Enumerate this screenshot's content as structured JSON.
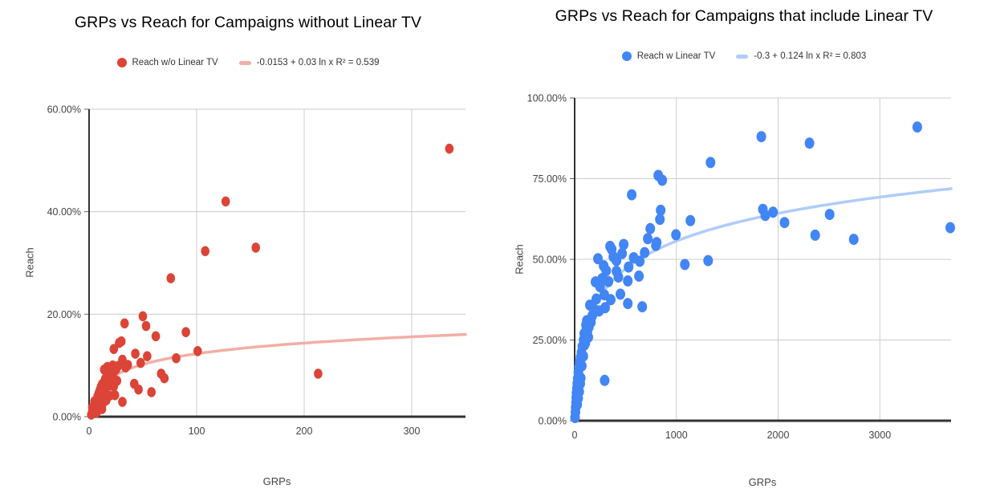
{
  "window": {
    "background": "#ffffff"
  },
  "chart_data": [
    {
      "type": "scatter",
      "title": "GRPs vs Reach for Campaigns without Linear TV",
      "xlabel": "GRPs",
      "ylabel": "Reach",
      "series_name": "Reach w/o Linear TV",
      "trend": {
        "label": "-0.0153 + 0.03 ln x R² = 0.539",
        "a": -0.0153,
        "b": 0.03,
        "r2": 0.539
      },
      "xlim": [
        0,
        350
      ],
      "ylim": [
        0,
        60
      ],
      "grid": true,
      "legend_position": "top",
      "x_ticks": [
        {
          "v": 0,
          "label": "0"
        },
        {
          "v": 100,
          "label": "100"
        },
        {
          "v": 200,
          "label": "200"
        },
        {
          "v": 300,
          "label": "300"
        }
      ],
      "y_ticks": [
        {
          "v": 0,
          "label": "0.00%"
        },
        {
          "v": 20,
          "label": "20.00%"
        },
        {
          "v": 40,
          "label": "40.00%"
        },
        {
          "v": 60,
          "label": "60.00%"
        }
      ],
      "colors": {
        "point": "#DB4437",
        "trend": "#F2AFA6"
      },
      "marker": {
        "rx": 5.3,
        "ry": 6.3
      },
      "units": {
        "x": "GRPs",
        "y": "percent reach"
      },
      "points": [
        [
          335,
          52.3
        ],
        [
          127,
          42
        ],
        [
          108,
          32.3
        ],
        [
          155,
          33
        ],
        [
          76,
          27
        ],
        [
          213,
          8.4
        ],
        [
          101,
          12.8
        ],
        [
          33,
          18.2
        ],
        [
          50,
          19.6
        ],
        [
          53,
          17.7
        ],
        [
          62,
          15.7
        ],
        [
          90,
          16.5
        ],
        [
          30,
          14.7
        ],
        [
          28,
          14.4
        ],
        [
          23,
          13.2
        ],
        [
          43,
          12.3
        ],
        [
          54,
          11.8
        ],
        [
          31,
          11.1
        ],
        [
          81,
          11.4
        ],
        [
          48,
          10.5
        ],
        [
          36,
          10.1
        ],
        [
          17,
          9.7
        ],
        [
          14,
          9.2
        ],
        [
          22,
          10
        ],
        [
          34,
          9.6
        ],
        [
          67,
          8.4
        ],
        [
          70,
          7.5
        ],
        [
          42,
          6.4
        ],
        [
          46,
          5.3
        ],
        [
          58,
          4.8
        ],
        [
          24,
          4.2
        ],
        [
          31,
          2.9
        ],
        [
          20,
          6.1
        ],
        [
          2,
          0.4
        ],
        [
          3,
          0.9
        ],
        [
          3,
          1.8
        ],
        [
          4,
          1.2
        ],
        [
          5,
          2.1
        ],
        [
          5,
          3
        ],
        [
          6,
          1.5
        ],
        [
          6,
          2.6
        ],
        [
          7,
          3.4
        ],
        [
          7,
          0.8
        ],
        [
          8,
          2.2
        ],
        [
          8,
          4
        ],
        [
          9,
          3.1
        ],
        [
          9,
          4.6
        ],
        [
          10,
          2.4
        ],
        [
          10,
          5.2
        ],
        [
          11,
          3.8
        ],
        [
          11,
          5.8
        ],
        [
          12,
          4.4
        ],
        [
          12,
          6.3
        ],
        [
          13,
          5
        ],
        [
          13,
          2.7
        ],
        [
          14,
          6.8
        ],
        [
          15,
          5.5
        ],
        [
          15,
          7.4
        ],
        [
          16,
          6.1
        ],
        [
          17,
          7.9
        ],
        [
          18,
          6.6
        ],
        [
          18,
          8.4
        ],
        [
          19,
          7.1
        ],
        [
          20,
          8.8
        ],
        [
          21,
          7.6
        ],
        [
          22,
          8.1
        ],
        [
          25,
          9.2
        ],
        [
          27,
          9.9
        ],
        [
          12,
          1.5
        ],
        [
          16,
          3.2
        ],
        [
          19,
          4.1
        ],
        [
          23,
          5.9
        ],
        [
          26,
          7
        ]
      ]
    },
    {
      "type": "scatter",
      "title": "GRPs vs Reach for Campaigns that include Linear TV",
      "xlabel": "GRPs",
      "ylabel": "Reach",
      "series_name": "Reach w Linear TV",
      "trend": {
        "label": "-0.3 + 0.124 ln x R² = 0.803",
        "a": -0.3,
        "b": 0.124,
        "r2": 0.803
      },
      "xlim": [
        0,
        3700
      ],
      "ylim": [
        0,
        100
      ],
      "grid": true,
      "legend_position": "top",
      "x_ticks": [
        {
          "v": 0,
          "label": "0"
        },
        {
          "v": 1000,
          "label": "1000"
        },
        {
          "v": 2000,
          "label": "2000"
        },
        {
          "v": 3000,
          "label": "3000"
        }
      ],
      "y_ticks": [
        {
          "v": 0,
          "label": "0.00%"
        },
        {
          "v": 25,
          "label": "25.00%"
        },
        {
          "v": 50,
          "label": "50.00%"
        },
        {
          "v": 75,
          "label": "75.00%"
        },
        {
          "v": 100,
          "label": "100.00%"
        }
      ],
      "colors": {
        "point": "#4285F4",
        "trend": "#B0CCF9"
      },
      "marker": {
        "rx": 6,
        "ry": 7
      },
      "units": {
        "x": "GRPs",
        "y": "percent reach"
      },
      "points": [
        [
          3368,
          91
        ],
        [
          2308,
          86
        ],
        [
          1835,
          88
        ],
        [
          1336,
          80
        ],
        [
          822,
          76
        ],
        [
          861,
          74.5
        ],
        [
          561,
          70
        ],
        [
          846,
          65.2
        ],
        [
          838,
          62.4
        ],
        [
          1138,
          62
        ],
        [
          743,
          59.5
        ],
        [
          996,
          57.6
        ],
        [
          806,
          55.2
        ],
        [
          1850,
          65.5
        ],
        [
          1950,
          64.6
        ],
        [
          1874,
          63.6
        ],
        [
          2063,
          61.4
        ],
        [
          2506,
          63.9
        ],
        [
          2364,
          57.5
        ],
        [
          2743,
          56.2
        ],
        [
          3692,
          59.8
        ],
        [
          1312,
          49.6
        ],
        [
          1083,
          48.4
        ],
        [
          295,
          12.5
        ],
        [
          348,
          54
        ],
        [
          482,
          54.6
        ],
        [
          719,
          56.4
        ],
        [
          798,
          54.3
        ],
        [
          688,
          52.1
        ],
        [
          229,
          50.2
        ],
        [
          364,
          53.1
        ],
        [
          411,
          46.3
        ],
        [
          466,
          51.8
        ],
        [
          530,
          47.6
        ],
        [
          640,
          49.4
        ],
        [
          632,
          44.8
        ],
        [
          522,
          36.3
        ],
        [
          450,
          39.2
        ],
        [
          332,
          43.1
        ],
        [
          292,
          39
        ],
        [
          213,
          37.7
        ],
        [
          150,
          35.8
        ],
        [
          174,
          32.6
        ],
        [
          111,
          29.7
        ],
        [
          134,
          25.9
        ],
        [
          95,
          23.4
        ],
        [
          664,
          35.3
        ],
        [
          522,
          43.3
        ],
        [
          411,
          49.6
        ],
        [
          380,
          50.8
        ],
        [
          310,
          46.5
        ],
        [
          270,
          44
        ],
        [
          250,
          41.5
        ],
        [
          240,
          34
        ],
        [
          190,
          34.5
        ],
        [
          160,
          30.5
        ],
        [
          205,
          43
        ],
        [
          285,
          48
        ],
        [
          430,
          44.5
        ],
        [
          580,
          50.5
        ],
        [
          355,
          37.5
        ],
        [
          300,
          35
        ],
        [
          4,
          1
        ],
        [
          8,
          2.6
        ],
        [
          10,
          4.1
        ],
        [
          14,
          5.6
        ],
        [
          16,
          7.1
        ],
        [
          18,
          8.6
        ],
        [
          22,
          10.1
        ],
        [
          26,
          11.6
        ],
        [
          30,
          13.1
        ],
        [
          36,
          15
        ],
        [
          42,
          16.6
        ],
        [
          50,
          18.1
        ],
        [
          58,
          19.6
        ],
        [
          66,
          21.1
        ],
        [
          76,
          23
        ],
        [
          88,
          25.1
        ],
        [
          100,
          26.6
        ],
        [
          115,
          28.1
        ],
        [
          60,
          13.2
        ],
        [
          45,
          9
        ],
        [
          70,
          17
        ],
        [
          85,
          20
        ],
        [
          105,
          24
        ],
        [
          125,
          27.5
        ],
        [
          140,
          29
        ],
        [
          35,
          7
        ],
        [
          25,
          5
        ],
        [
          55,
          11.5
        ],
        [
          120,
          31
        ],
        [
          95,
          27
        ]
      ]
    }
  ]
}
